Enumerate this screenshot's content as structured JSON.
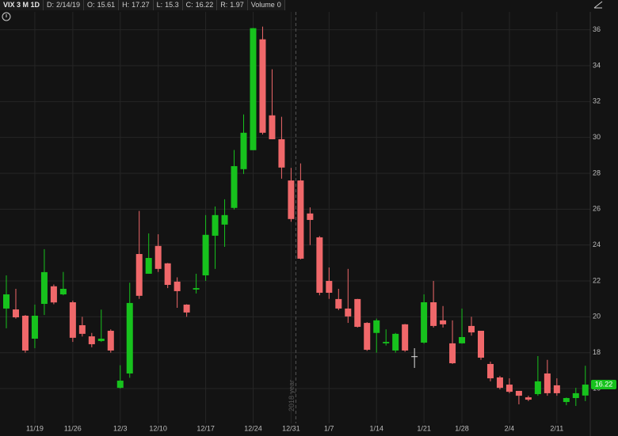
{
  "header": {
    "symbol": "VIX 3 M 1D",
    "fields": [
      {
        "label": "D:",
        "value": "2/14/19"
      },
      {
        "label": "O:",
        "value": "15.61"
      },
      {
        "label": "H:",
        "value": "17.27"
      },
      {
        "label": "L:",
        "value": "15.3"
      },
      {
        "label": "C:",
        "value": "16.22"
      },
      {
        "label": "R:",
        "value": "1.97"
      },
      {
        "label": "Volume",
        "value": "0"
      }
    ]
  },
  "chart_data": {
    "type": "candlestick",
    "categories": [
      null,
      null,
      null,
      "11/19",
      null,
      null,
      null,
      "11/26",
      null,
      null,
      null,
      null,
      "12/3",
      null,
      null,
      null,
      "12/10",
      null,
      null,
      null,
      null,
      "12/17",
      null,
      null,
      null,
      null,
      "12/24",
      null,
      null,
      null,
      "12/31",
      null,
      null,
      null,
      "1/7",
      null,
      null,
      null,
      null,
      "1/14",
      null,
      null,
      null,
      null,
      "1/21",
      null,
      null,
      null,
      "1/28",
      null,
      null,
      null,
      null,
      "2/4",
      null,
      null,
      null,
      null,
      "2/11",
      null,
      null,
      null
    ],
    "open": [
      20.46,
      20.41,
      20.06,
      18.78,
      20.72,
      21.7,
      21.25,
      20.81,
      19.53,
      18.91,
      18.65,
      19.22,
      16.04,
      16.84,
      23.5,
      22.4,
      23.95,
      22.98,
      21.96,
      20.68,
      21.52,
      22.31,
      24.52,
      25.14,
      26.07,
      28.23,
      29.29,
      35.47,
      31.23,
      29.9,
      27.6,
      27.6,
      25.76,
      24.43,
      22.0,
      20.99,
      20.46,
      20.99,
      19.66,
      19.1,
      18.52,
      18.12,
      19.58,
      17.8,
      18.56,
      20.81,
      19.8,
      18.52,
      18.52,
      19.49,
      19.22,
      17.37,
      16.62,
      16.22,
      15.87,
      15.51,
      15.69,
      16.84,
      16.18,
      15.25,
      15.47,
      15.61
    ],
    "high": [
      22.31,
      21.56,
      20.1,
      20.68,
      23.77,
      21.8,
      22.5,
      20.9,
      20.0,
      19.1,
      20.4,
      19.3,
      17.3,
      21.9,
      25.9,
      24.65,
      24.6,
      23.0,
      22.2,
      20.7,
      22.4,
      25.67,
      26.15,
      26.55,
      29.3,
      31.28,
      36.1,
      36.18,
      33.8,
      31.15,
      28.3,
      28.55,
      26.1,
      24.5,
      22.75,
      21.56,
      22.67,
      21.0,
      19.7,
      19.9,
      19.3,
      19.1,
      19.6,
      18.25,
      21.25,
      22.0,
      20.6,
      19.8,
      20.46,
      20.0,
      19.22,
      17.5,
      16.7,
      16.57,
      15.87,
      15.6,
      17.81,
      17.6,
      16.57,
      15.5,
      16.04,
      17.27
    ],
    "low": [
      19.36,
      19.9,
      18.0,
      18.25,
      20.1,
      20.7,
      21.2,
      18.6,
      18.9,
      18.3,
      18.6,
      18.0,
      16.0,
      16.6,
      21.0,
      22.4,
      22.5,
      21.6,
      20.5,
      20.0,
      21.3,
      22.0,
      22.67,
      23.9,
      25.98,
      27.96,
      29.29,
      30.17,
      29.9,
      27.7,
      25.3,
      23.2,
      24.0,
      21.2,
      21.0,
      20.37,
      19.66,
      19.4,
      18.1,
      18.0,
      18.4,
      18.0,
      18.05,
      17.15,
      18.5,
      19.4,
      19.4,
      17.37,
      18.5,
      18.95,
      17.6,
      16.4,
      15.95,
      15.74,
      15.12,
      15.3,
      15.6,
      15.6,
      15.6,
      15.07,
      15.03,
      15.3
    ],
    "close": [
      21.25,
      19.97,
      18.12,
      20.06,
      22.49,
      20.8,
      21.56,
      18.83,
      19.05,
      18.47,
      18.78,
      18.12,
      16.44,
      20.77,
      21.17,
      23.28,
      22.67,
      21.78,
      21.43,
      20.24,
      21.6,
      24.57,
      25.67,
      25.67,
      28.4,
      30.26,
      36.09,
      30.26,
      29.9,
      28.32,
      25.45,
      23.24,
      25.4,
      21.34,
      21.34,
      20.46,
      20.02,
      19.44,
      18.16,
      19.8,
      18.6,
      19.05,
      18.12,
      17.8,
      20.81,
      19.49,
      19.58,
      17.41,
      18.87,
      19.13,
      17.72,
      16.57,
      16.04,
      15.82,
      15.6,
      15.38,
      16.4,
      15.74,
      15.74,
      15.47,
      15.74,
      16.22
    ],
    "up_color": "#17c21d",
    "down_color": "#f0686a",
    "doji_color": "#e0e0e0",
    "ylim": [
      14.06,
      37.0
    ],
    "yticks": [
      16,
      18,
      20,
      22,
      24,
      26,
      28,
      30,
      32,
      34,
      36
    ],
    "grid": true,
    "annotation": "2018 year"
  }
}
